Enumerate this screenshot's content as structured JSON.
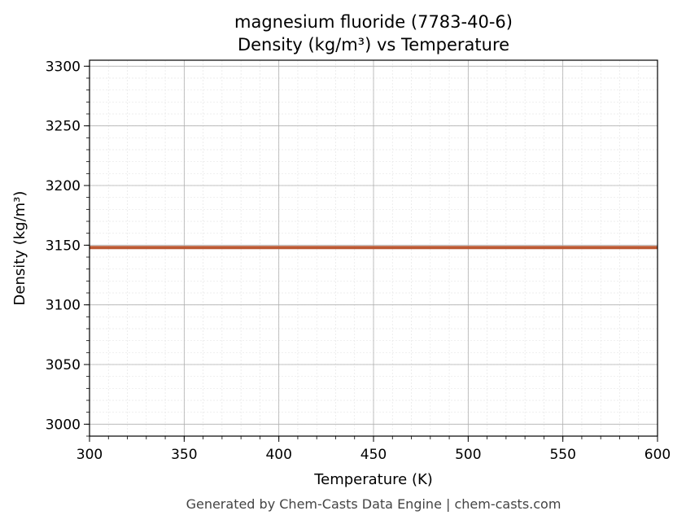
{
  "chart_data": {
    "type": "line",
    "title": "magnesium fluoride (7783-40-6)",
    "subtitle": "Density (kg/m³) vs Temperature",
    "xlabel": "Temperature (K)",
    "ylabel": "Density (kg/m³)",
    "xlim": [
      300,
      600
    ],
    "ylim": [
      2990,
      3305
    ],
    "x_ticks": [
      300,
      350,
      400,
      450,
      500,
      550,
      600
    ],
    "y_ticks": [
      3000,
      3050,
      3100,
      3150,
      3200,
      3250,
      3300
    ],
    "grid": true,
    "series": [
      {
        "color": "#bc5a34",
        "x": [
          300,
          350,
          400,
          450,
          500,
          550,
          600
        ],
        "y": [
          3148,
          3148,
          3148,
          3148,
          3148,
          3148,
          3148
        ]
      }
    ]
  },
  "footer": "Generated by Chem-Casts Data Engine | chem-casts.com"
}
